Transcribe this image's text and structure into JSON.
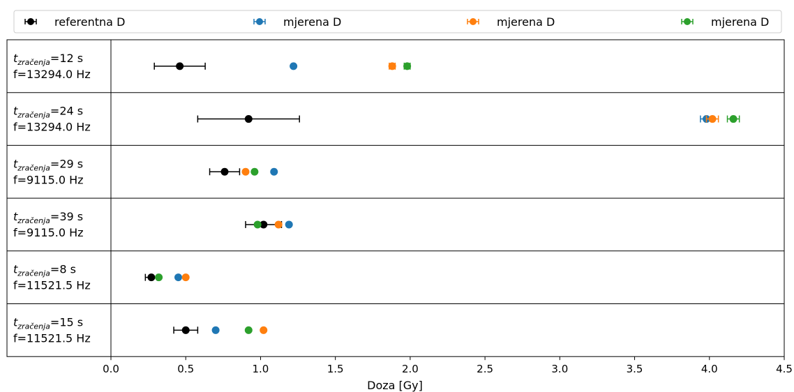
{
  "chart_data": {
    "type": "scatter",
    "xlabel": "Doza [Gy]",
    "xlim": [
      0.0,
      4.5
    ],
    "x_ticks": [
      "0.0",
      "0.5",
      "1.0",
      "1.5",
      "2.0",
      "2.5",
      "3.0",
      "3.5",
      "4.0",
      "4.5"
    ],
    "grid": false,
    "legend_position": "top",
    "legend": [
      {
        "label": "referentna D",
        "color": "#000000"
      },
      {
        "label": "mjerena D",
        "color": "#1f77b4"
      },
      {
        "label": "mjerena D",
        "color": "#ff7f0e"
      },
      {
        "label": "mjerena D",
        "color": "#2ca02c"
      }
    ],
    "rows": [
      {
        "t_var": "t",
        "t_sub": "zračenja",
        "t_value": "=12 s",
        "freq_label": "f=13294.0 Hz",
        "points": [
          {
            "series": 0,
            "x": 0.46,
            "err": 0.17
          },
          {
            "series": 1,
            "x": 1.22,
            "err": 0.0
          },
          {
            "series": 2,
            "x": 1.88,
            "err": 0.02
          },
          {
            "series": 3,
            "x": 1.98,
            "err": 0.02
          }
        ]
      },
      {
        "t_var": "t",
        "t_sub": "zračenja",
        "t_value": "=24 s",
        "freq_label": "f=13294.0 Hz",
        "points": [
          {
            "series": 0,
            "x": 0.92,
            "err": 0.34
          },
          {
            "series": 1,
            "x": 3.98,
            "err": 0.04
          },
          {
            "series": 2,
            "x": 4.02,
            "err": 0.04
          },
          {
            "series": 3,
            "x": 4.16,
            "err": 0.04
          }
        ]
      },
      {
        "t_var": "t",
        "t_sub": "zračenja",
        "t_value": "=29 s",
        "freq_label": "f=9115.0 Hz",
        "points": [
          {
            "series": 0,
            "x": 0.76,
            "err": 0.1
          },
          {
            "series": 1,
            "x": 1.09,
            "err": 0.0
          },
          {
            "series": 2,
            "x": 0.9,
            "err": 0.0
          },
          {
            "series": 3,
            "x": 0.96,
            "err": 0.0
          }
        ]
      },
      {
        "t_var": "t",
        "t_sub": "zračenja",
        "t_value": "=39 s",
        "freq_label": "f=9115.0 Hz",
        "points": [
          {
            "series": 0,
            "x": 1.02,
            "err": 0.12
          },
          {
            "series": 1,
            "x": 1.19,
            "err": 0.0
          },
          {
            "series": 2,
            "x": 1.12,
            "err": 0.0
          },
          {
            "series": 3,
            "x": 0.98,
            "err": 0.0
          }
        ]
      },
      {
        "t_var": "t",
        "t_sub": "zračenja",
        "t_value": "=8 s",
        "freq_label": "f=11521.5 Hz",
        "points": [
          {
            "series": 0,
            "x": 0.27,
            "err": 0.04
          },
          {
            "series": 1,
            "x": 0.45,
            "err": 0.0
          },
          {
            "series": 2,
            "x": 0.5,
            "err": 0.0
          },
          {
            "series": 3,
            "x": 0.32,
            "err": 0.0
          }
        ]
      },
      {
        "t_var": "t",
        "t_sub": "zračenja",
        "t_value": "=15 s",
        "freq_label": "f=11521.5 Hz",
        "points": [
          {
            "series": 0,
            "x": 0.5,
            "err": 0.08
          },
          {
            "series": 1,
            "x": 0.7,
            "err": 0.0
          },
          {
            "series": 2,
            "x": 1.02,
            "err": 0.0
          },
          {
            "series": 3,
            "x": 0.92,
            "err": 0.0
          }
        ]
      }
    ]
  }
}
